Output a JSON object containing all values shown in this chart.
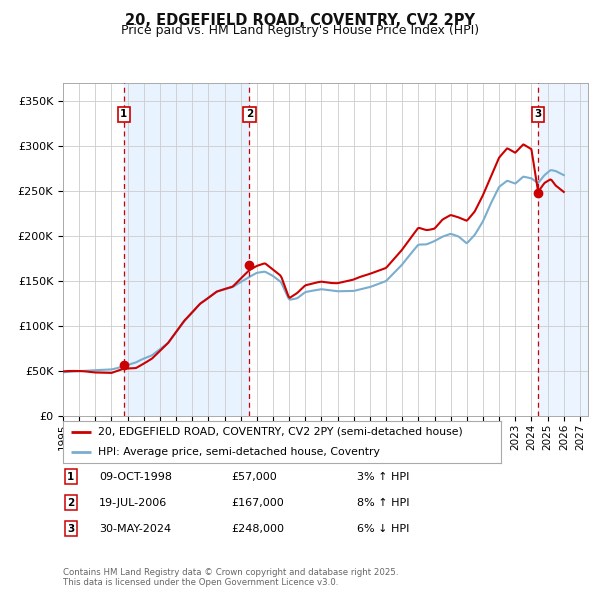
{
  "title1": "20, EDGEFIELD ROAD, COVENTRY, CV2 2PY",
  "title2": "Price paid vs. HM Land Registry's House Price Index (HPI)",
  "ylim": [
    0,
    370000
  ],
  "xlim_start": 1995.0,
  "xlim_end": 2027.5,
  "yticks": [
    0,
    50000,
    100000,
    150000,
    200000,
    250000,
    300000,
    350000
  ],
  "ytick_labels": [
    "£0",
    "£50K",
    "£100K",
    "£150K",
    "£200K",
    "£250K",
    "£300K",
    "£350K"
  ],
  "xtick_years": [
    1995,
    1996,
    1997,
    1998,
    1999,
    2000,
    2001,
    2002,
    2003,
    2004,
    2005,
    2006,
    2007,
    2008,
    2009,
    2010,
    2011,
    2012,
    2013,
    2014,
    2015,
    2016,
    2017,
    2018,
    2019,
    2020,
    2021,
    2022,
    2023,
    2024,
    2025,
    2026,
    2027
  ],
  "sale_dates": [
    1998.77,
    2006.54,
    2024.41
  ],
  "sale_prices": [
    57000,
    167000,
    248000
  ],
  "sale_labels": [
    "1",
    "2",
    "3"
  ],
  "sale_date_strs": [
    "09-OCT-1998",
    "19-JUL-2006",
    "30-MAY-2024"
  ],
  "sale_price_strs": [
    "£57,000",
    "£167,000",
    "£248,000"
  ],
  "sale_hpi_strs": [
    "3% ↑ HPI",
    "8% ↑ HPI",
    "6% ↓ HPI"
  ],
  "red_line_color": "#cc0000",
  "blue_line_color": "#7aadce",
  "shaded_region1": [
    1998.77,
    2006.54
  ],
  "shaded_region2": [
    2024.41,
    2027.5
  ],
  "shaded_color": "#ddeeff",
  "bg_color": "#ffffff",
  "grid_color": "#cccccc",
  "dashed_line_color": "#cc0000",
  "legend_label1": "20, EDGEFIELD ROAD, COVENTRY, CV2 2PY (semi-detached house)",
  "legend_label2": "HPI: Average price, semi-detached house, Coventry",
  "footer_text": "Contains HM Land Registry data © Crown copyright and database right 2025.\nThis data is licensed under the Open Government Licence v3.0.",
  "red_key": [
    [
      1995.0,
      49000
    ],
    [
      1996.0,
      49500
    ],
    [
      1997.0,
      50000
    ],
    [
      1998.0,
      51000
    ],
    [
      1998.77,
      57000
    ],
    [
      1999.5,
      58000
    ],
    [
      2000.5,
      68000
    ],
    [
      2001.5,
      85000
    ],
    [
      2002.5,
      110000
    ],
    [
      2003.5,
      130000
    ],
    [
      2004.5,
      143000
    ],
    [
      2005.5,
      148000
    ],
    [
      2006.54,
      167000
    ],
    [
      2007.0,
      172000
    ],
    [
      2007.5,
      175000
    ],
    [
      2008.0,
      168000
    ],
    [
      2008.5,
      160000
    ],
    [
      2009.0,
      135000
    ],
    [
      2009.5,
      140000
    ],
    [
      2010.0,
      148000
    ],
    [
      2011.0,
      152000
    ],
    [
      2012.0,
      150000
    ],
    [
      2013.0,
      152000
    ],
    [
      2014.0,
      158000
    ],
    [
      2015.0,
      165000
    ],
    [
      2016.0,
      185000
    ],
    [
      2017.0,
      210000
    ],
    [
      2017.5,
      208000
    ],
    [
      2018.0,
      210000
    ],
    [
      2018.5,
      220000
    ],
    [
      2019.0,
      225000
    ],
    [
      2019.5,
      222000
    ],
    [
      2020.0,
      218000
    ],
    [
      2020.5,
      228000
    ],
    [
      2021.0,
      245000
    ],
    [
      2021.5,
      265000
    ],
    [
      2022.0,
      285000
    ],
    [
      2022.5,
      295000
    ],
    [
      2023.0,
      290000
    ],
    [
      2023.5,
      300000
    ],
    [
      2024.0,
      295000
    ],
    [
      2024.41,
      248000
    ],
    [
      2024.8,
      258000
    ],
    [
      2025.2,
      262000
    ],
    [
      2025.5,
      255000
    ],
    [
      2026.0,
      248000
    ]
  ],
  "blue_key": [
    [
      1995.0,
      48000
    ],
    [
      1996.0,
      49000
    ],
    [
      1997.0,
      50000
    ],
    [
      1998.0,
      51000
    ],
    [
      1998.77,
      54000
    ],
    [
      1999.5,
      57000
    ],
    [
      2000.5,
      65000
    ],
    [
      2001.5,
      80000
    ],
    [
      2002.5,
      105000
    ],
    [
      2003.5,
      125000
    ],
    [
      2004.5,
      138000
    ],
    [
      2005.5,
      143000
    ],
    [
      2006.54,
      155000
    ],
    [
      2007.0,
      160000
    ],
    [
      2007.5,
      162000
    ],
    [
      2008.0,
      158000
    ],
    [
      2008.5,
      152000
    ],
    [
      2009.0,
      133000
    ],
    [
      2009.5,
      135000
    ],
    [
      2010.0,
      142000
    ],
    [
      2011.0,
      145000
    ],
    [
      2012.0,
      143000
    ],
    [
      2013.0,
      143000
    ],
    [
      2014.0,
      147000
    ],
    [
      2015.0,
      153000
    ],
    [
      2016.0,
      170000
    ],
    [
      2017.0,
      192000
    ],
    [
      2017.5,
      193000
    ],
    [
      2018.0,
      197000
    ],
    [
      2018.5,
      202000
    ],
    [
      2019.0,
      205000
    ],
    [
      2019.5,
      202000
    ],
    [
      2020.0,
      195000
    ],
    [
      2020.5,
      205000
    ],
    [
      2021.0,
      220000
    ],
    [
      2021.5,
      240000
    ],
    [
      2022.0,
      258000
    ],
    [
      2022.5,
      265000
    ],
    [
      2023.0,
      262000
    ],
    [
      2023.5,
      270000
    ],
    [
      2024.0,
      268000
    ],
    [
      2024.41,
      263000
    ],
    [
      2024.8,
      272000
    ],
    [
      2025.2,
      278000
    ],
    [
      2025.5,
      276000
    ],
    [
      2026.0,
      270000
    ]
  ]
}
